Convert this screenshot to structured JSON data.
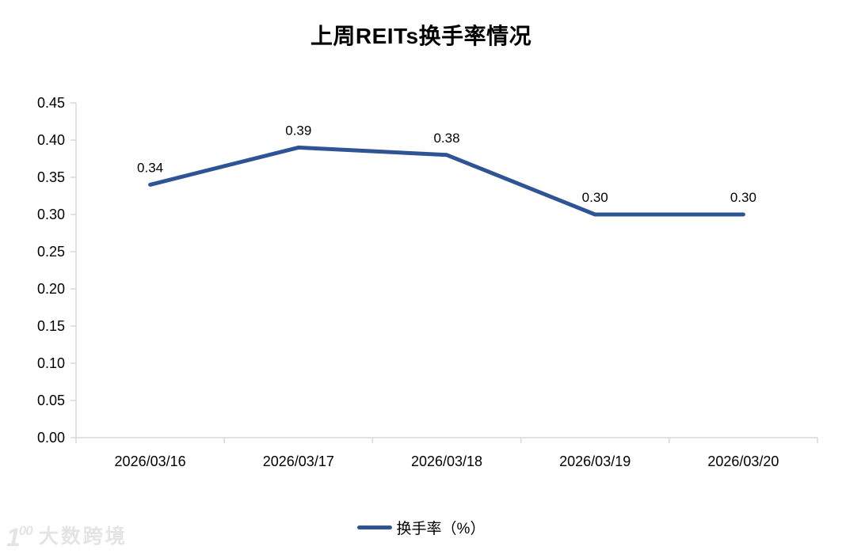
{
  "header": {
    "title": "上周REITs换手率情况"
  },
  "chart_data": {
    "type": "line",
    "title": "上周REITs换手率情况",
    "categories": [
      "2026/03/16",
      "2026/03/17",
      "2026/03/18",
      "2026/03/19",
      "2026/03/20"
    ],
    "series": [
      {
        "name": "换手率（%）",
        "color": "#2F5496",
        "values": [
          0.34,
          0.39,
          0.38,
          0.3,
          0.3
        ],
        "labels": [
          "0.34",
          "0.39",
          "0.38",
          "0.30",
          "0.30"
        ]
      }
    ],
    "y_ticks": [
      "0.00",
      "0.05",
      "0.10",
      "0.15",
      "0.20",
      "0.25",
      "0.30",
      "0.35",
      "0.40",
      "0.45"
    ],
    "ylim": [
      0,
      0.45
    ],
    "xlabel": "",
    "ylabel": "",
    "grid": false,
    "legend_position": "bottom"
  },
  "legend": {
    "items": [
      {
        "label": "换手率（%）",
        "color": "#2F5496"
      }
    ]
  },
  "watermark": {
    "logo_main": "1",
    "logo_sup": "00",
    "text": "大数跨境"
  },
  "colors": {
    "line": "#2F5496",
    "axis": "#D9D9D9",
    "text": "#000000",
    "watermark": "#E4E4E4"
  }
}
